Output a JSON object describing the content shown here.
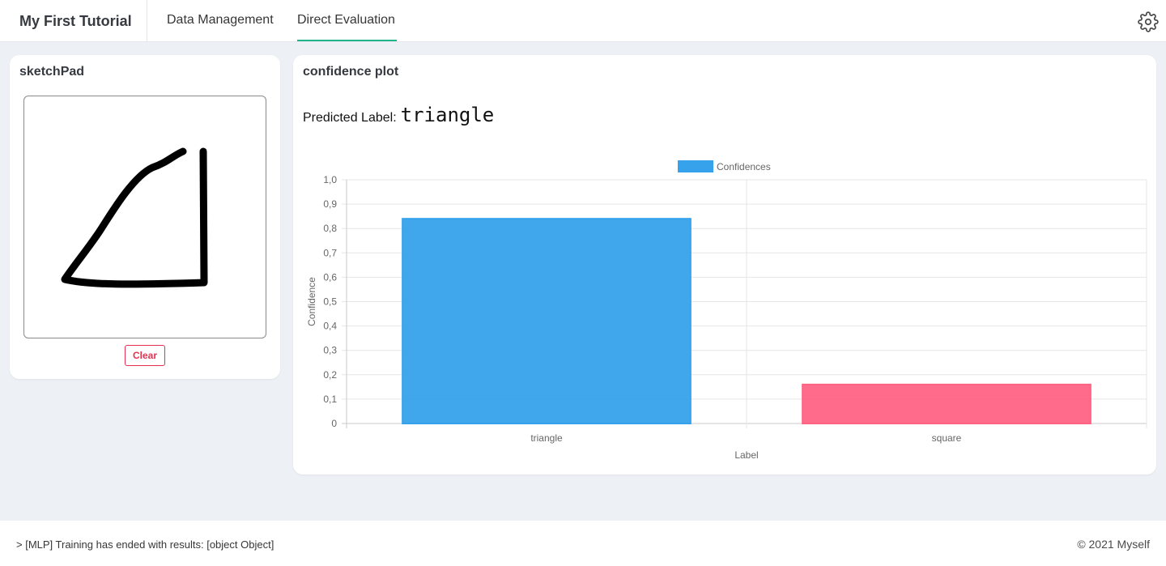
{
  "app": {
    "title": "My First Tutorial"
  },
  "tabs": [
    {
      "label": "Data Management",
      "active": false
    },
    {
      "label": "Direct Evaluation",
      "active": true
    }
  ],
  "settings_icon": "gear-icon",
  "sketchpad": {
    "title": "sketchPad",
    "clear_label": "Clear"
  },
  "confidence": {
    "title": "confidence plot",
    "predicted_prefix": "Predicted Label:",
    "predicted_value": "triangle"
  },
  "chart_data": {
    "type": "bar",
    "categories": [
      "triangle",
      "square"
    ],
    "series": [
      {
        "name": "Confidences",
        "values": [
          0.84,
          0.16
        ]
      }
    ],
    "colors": [
      "#36a2eb",
      "#ff6384"
    ],
    "xlabel": "Label",
    "ylabel": "Confidence",
    "ylim": [
      0,
      1
    ],
    "yticks": [
      "0",
      "0,1",
      "0,2",
      "0,3",
      "0,4",
      "0,5",
      "0,6",
      "0,7",
      "0,8",
      "0,9",
      "1,0"
    ],
    "grid": true,
    "legend": "top"
  },
  "footer": {
    "status": "> [MLP] Training has ended with results: [object Object]",
    "copyright": "© 2021 Myself"
  }
}
